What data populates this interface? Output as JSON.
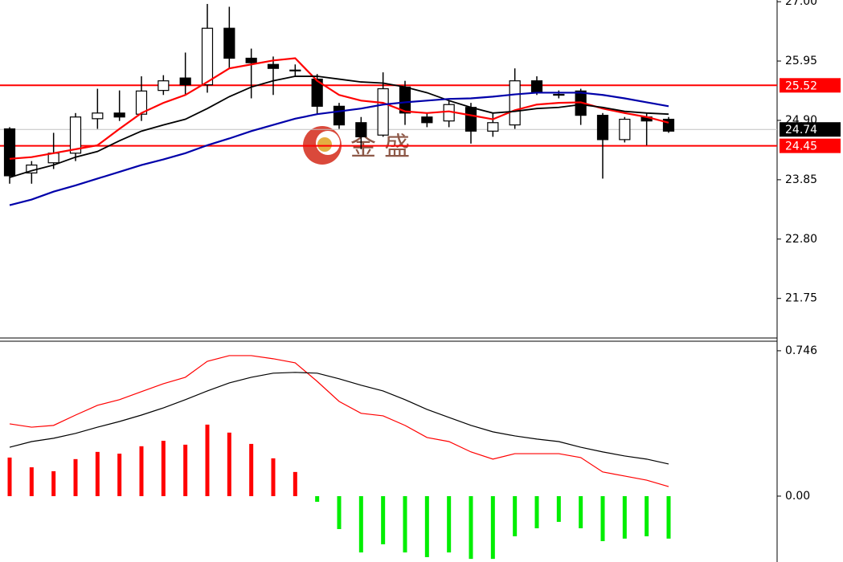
{
  "chart_data": [
    {
      "type": "candlestick",
      "watermark": "金 盛",
      "open": [
        24.75,
        23.97,
        24.15,
        24.32,
        24.93,
        25.03,
        25.01,
        25.43,
        25.65,
        25.53,
        26.53,
        26.0,
        25.89,
        25.79,
        25.63,
        25.15,
        24.86,
        24.64,
        25.49,
        24.96,
        24.89,
        25.13,
        24.71,
        24.82,
        25.6,
        25.36,
        25.42,
        24.99,
        24.56,
        24.96,
        24.92
      ],
      "high": [
        24.78,
        24.18,
        24.68,
        25.03,
        25.46,
        25.43,
        25.68,
        25.7,
        26.1,
        26.96,
        26.91,
        26.17,
        26.03,
        25.89,
        25.72,
        25.21,
        24.96,
        25.75,
        25.6,
        25.03,
        25.25,
        25.21,
        25.03,
        25.82,
        25.68,
        25.43,
        25.46,
        25.03,
        24.96,
        25.03,
        24.96
      ],
      "low": [
        23.78,
        23.78,
        24.04,
        24.18,
        24.75,
        24.89,
        24.89,
        25.35,
        25.35,
        25.39,
        25.82,
        25.29,
        25.35,
        25.68,
        25.01,
        24.75,
        24.39,
        24.61,
        24.82,
        24.78,
        24.78,
        24.49,
        24.61,
        24.75,
        25.35,
        25.29,
        24.82,
        23.87,
        24.51,
        24.46,
        24.68
      ],
      "close": [
        23.92,
        24.11,
        24.32,
        24.96,
        25.03,
        24.96,
        25.42,
        25.6,
        25.53,
        26.53,
        26.0,
        25.92,
        25.82,
        25.79,
        25.15,
        24.82,
        24.61,
        25.46,
        25.03,
        24.86,
        25.18,
        24.71,
        24.86,
        25.6,
        25.39,
        25.36,
        24.99,
        24.56,
        24.92,
        24.89,
        24.71
      ],
      "up_color": "#ffffff",
      "down_color": "#000000",
      "edge_color": "#000000",
      "lines": [
        {
          "color": "#ff0000",
          "values": [
            24.22,
            24.25,
            24.32,
            24.39,
            24.46,
            24.75,
            25.03,
            25.21,
            25.35,
            25.58,
            25.82,
            25.89,
            25.96,
            26.0,
            25.6,
            25.35,
            25.25,
            25.21,
            25.06,
            25.03,
            25.06,
            24.99,
            24.92,
            25.08,
            25.18,
            25.21,
            25.22,
            25.11,
            25.03,
            24.96,
            24.86
          ]
        },
        {
          "color": "#000000",
          "values": [
            23.89,
            24.01,
            24.11,
            24.25,
            24.35,
            24.54,
            24.71,
            24.82,
            24.92,
            25.11,
            25.32,
            25.49,
            25.6,
            25.68,
            25.68,
            25.63,
            25.58,
            25.56,
            25.49,
            25.39,
            25.25,
            25.13,
            25.03,
            25.06,
            25.11,
            25.13,
            25.18,
            25.13,
            25.06,
            25.03,
            25.01
          ]
        },
        {
          "color": "#0000aa",
          "values": [
            23.4,
            23.5,
            23.64,
            23.75,
            23.87,
            23.99,
            24.11,
            24.21,
            24.32,
            24.46,
            24.58,
            24.71,
            24.82,
            24.93,
            25.01,
            25.06,
            25.11,
            25.18,
            25.22,
            25.25,
            25.28,
            25.29,
            25.32,
            25.36,
            25.39,
            25.39,
            25.39,
            25.35,
            25.29,
            25.22,
            25.15
          ]
        }
      ],
      "hlines": [
        {
          "value": 25.52,
          "color": "#ff0000",
          "label_color": "#ff0000"
        },
        {
          "value": 24.45,
          "color": "#ff0000",
          "label_color": "#ff0000"
        },
        {
          "value": 24.74,
          "color": "#c0c0c0",
          "label_color": "#000000"
        }
      ],
      "ylim": [
        21.05,
        27.03
      ],
      "yticks": [
        {
          "value": 27,
          "label": "27.00"
        },
        25.95,
        {
          "value": 24.9,
          "label": "24.90"
        },
        23.85,
        {
          "value": 22.8,
          "label": "22.80"
        },
        21.75
      ]
    },
    {
      "type": "macd",
      "histogram": [
        0.198,
        0.148,
        0.128,
        0.19,
        0.227,
        0.218,
        0.256,
        0.284,
        0.264,
        0.367,
        0.326,
        0.268,
        0.194,
        0.124,
        -0.029,
        -0.169,
        -0.289,
        -0.247,
        -0.289,
        -0.313,
        -0.289,
        -0.322,
        -0.322,
        -0.206,
        -0.165,
        -0.132,
        -0.165,
        -0.231,
        -0.218,
        -0.206,
        -0.218
      ],
      "positive_color": "#ff0000",
      "negative_color": "#00ee00",
      "lines": [
        {
          "color": "#ff0000",
          "values": [
            0.371,
            0.354,
            0.363,
            0.416,
            0.466,
            0.495,
            0.536,
            0.577,
            0.61,
            0.692,
            0.721,
            0.721,
            0.705,
            0.684,
            0.589,
            0.486,
            0.425,
            0.412,
            0.363,
            0.301,
            0.28,
            0.227,
            0.19,
            0.218,
            0.218,
            0.218,
            0.198,
            0.124,
            0.103,
            0.082,
            0.049
          ]
        },
        {
          "color": "#000000",
          "values": [
            0.251,
            0.28,
            0.297,
            0.322,
            0.354,
            0.383,
            0.416,
            0.453,
            0.495,
            0.54,
            0.581,
            0.61,
            0.631,
            0.635,
            0.631,
            0.602,
            0.569,
            0.54,
            0.495,
            0.445,
            0.404,
            0.363,
            0.33,
            0.309,
            0.293,
            0.28,
            0.251,
            0.227,
            0.206,
            0.19,
            0.165
          ]
        }
      ],
      "ylim": [
        -0.338,
        0.795
      ],
      "yticks": [
        0.746,
        {
          "value": 0,
          "label": "0.00"
        }
      ]
    }
  ]
}
